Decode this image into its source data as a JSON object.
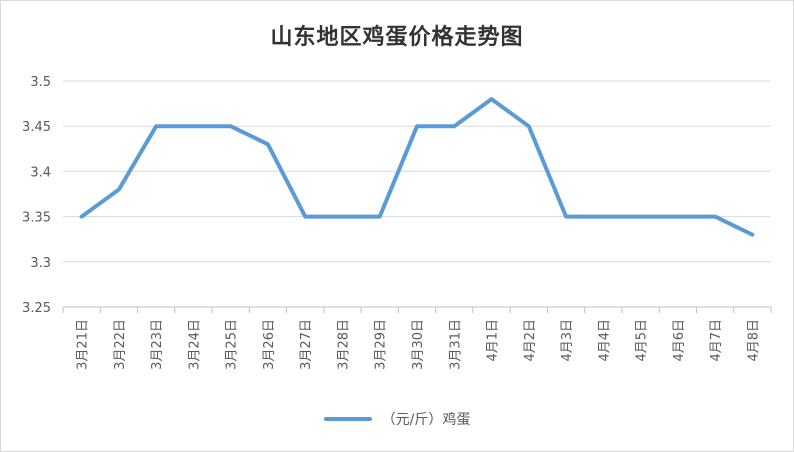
{
  "chart_data": {
    "type": "line",
    "title": "山东地区鸡蛋价格走势图",
    "xlabel": "",
    "ylabel": "",
    "categories": [
      "3月21日",
      "3月22日",
      "3月23日",
      "3月24日",
      "3月25日",
      "3月26日",
      "3月27日",
      "3月28日",
      "3月29日",
      "3月30日",
      "3月31日",
      "4月1日",
      "4月2日",
      "4月3日",
      "4月4日",
      "4月5日",
      "4月6日",
      "4月7日",
      "4月8日"
    ],
    "series": [
      {
        "name": "（元/斤）鸡蛋",
        "color": "#5b9bd5",
        "values": [
          3.35,
          3.38,
          3.45,
          3.45,
          3.45,
          3.43,
          3.35,
          3.35,
          3.35,
          3.45,
          3.45,
          3.48,
          3.45,
          3.35,
          3.35,
          3.35,
          3.35,
          3.35,
          3.33
        ]
      }
    ],
    "ylim": [
      3.25,
      3.5
    ],
    "yticks": [
      "3.25",
      "3.3",
      "3.35",
      "3.4",
      "3.45",
      "3.5"
    ],
    "grid": true,
    "legend_position": "bottom"
  }
}
